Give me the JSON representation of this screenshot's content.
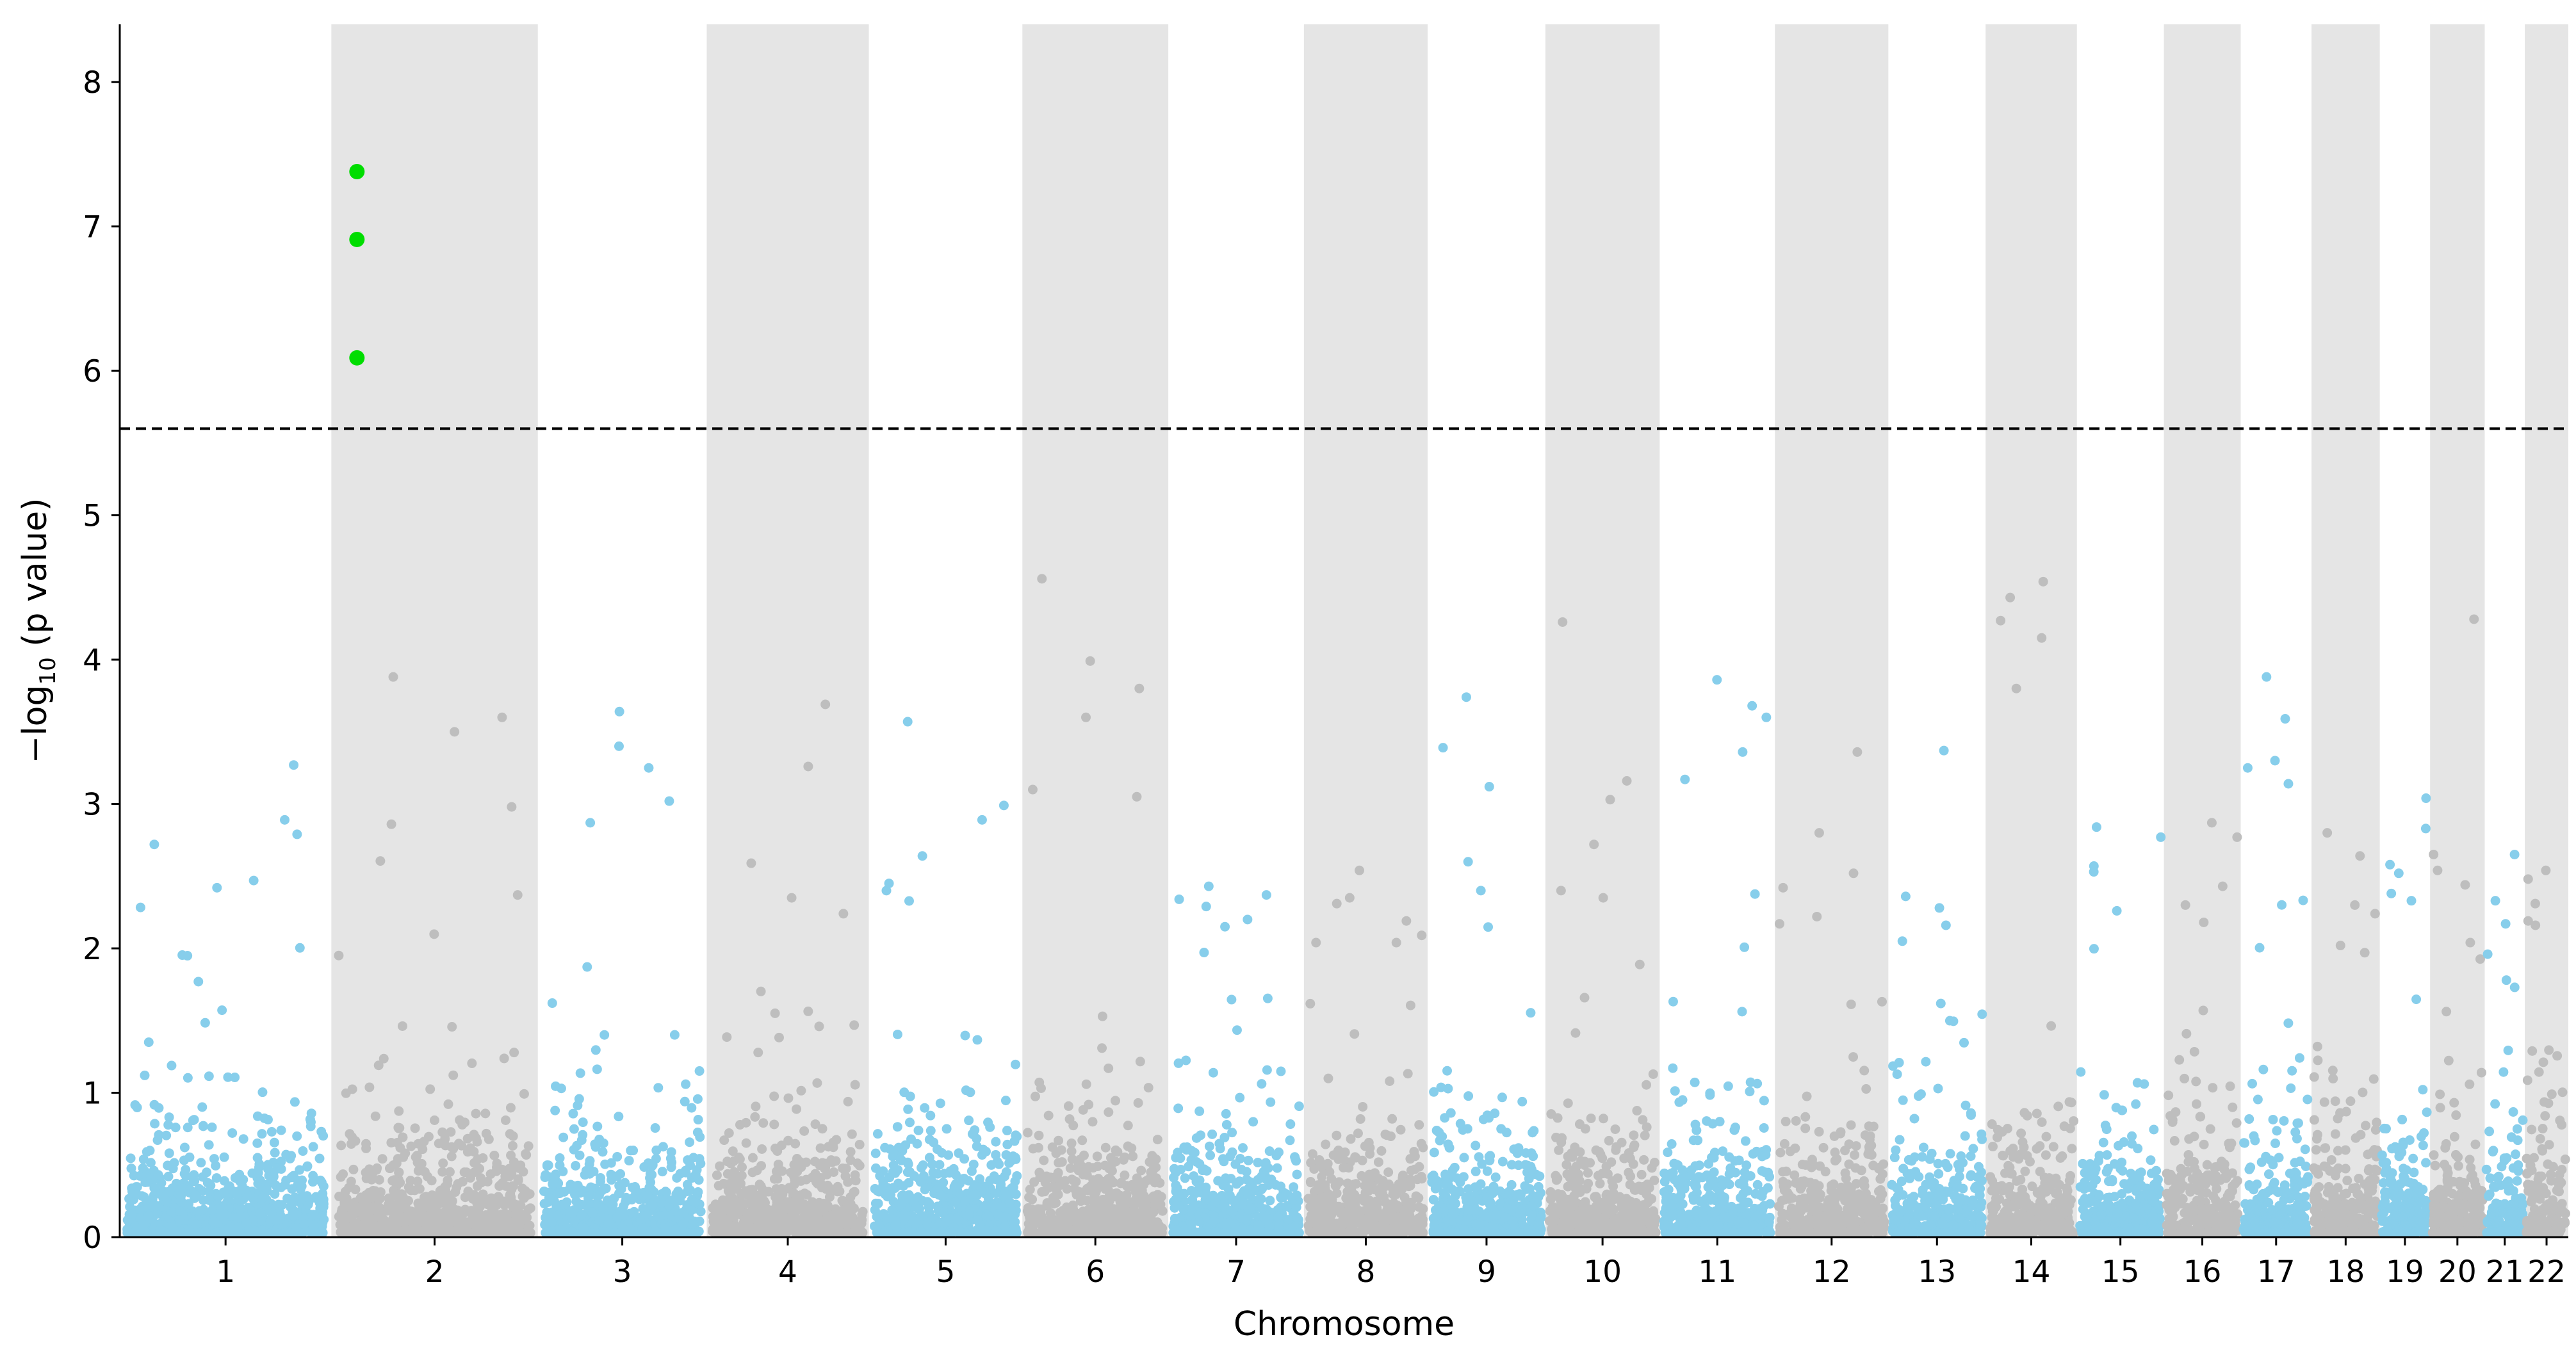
{
  "chart_data": {
    "type": "scatter",
    "subtype": "manhattan",
    "title": "",
    "xlabel": "Chromosome",
    "ylabel": {
      "prefix": "−log",
      "subscript": "10",
      "suffix": " (p value)"
    },
    "ylim": [
      0,
      8.4
    ],
    "yticks": [
      0,
      1,
      2,
      3,
      4,
      5,
      6,
      7,
      8
    ],
    "significance_threshold": 5.6,
    "chromosomes": [
      {
        "label": "1",
        "start": 0,
        "end": 248,
        "color": "#87CEEB",
        "shaded": false,
        "peaks": [
          3.27,
          2.89,
          2.79,
          2.72,
          2.47
        ]
      },
      {
        "label": "2",
        "start": 248,
        "end": 490,
        "color": "#BEBEBE",
        "shaded": true,
        "peaks": [
          3.88,
          3.6,
          3.5,
          2.98,
          2.86
        ]
      },
      {
        "label": "3",
        "start": 490,
        "end": 688,
        "color": "#87CEEB",
        "shaded": false,
        "peaks": [
          3.64,
          3.4,
          3.25,
          3.02,
          2.87
        ]
      },
      {
        "label": "4",
        "start": 688,
        "end": 878,
        "color": "#BEBEBE",
        "shaded": true,
        "peaks": [
          3.69,
          3.26,
          2.59,
          2.35,
          2.24
        ]
      },
      {
        "label": "5",
        "start": 878,
        "end": 1058,
        "color": "#87CEEB",
        "shaded": false,
        "peaks": [
          3.57,
          2.99,
          2.89,
          2.64,
          2.45
        ]
      },
      {
        "label": "6",
        "start": 1058,
        "end": 1229,
        "color": "#BEBEBE",
        "shaded": true,
        "peaks": [
          4.56,
          3.99,
          3.8,
          3.6,
          3.1
        ]
      },
      {
        "label": "7",
        "start": 1229,
        "end": 1388,
        "color": "#87CEEB",
        "shaded": false,
        "peaks": [
          2.43,
          2.37,
          2.34,
          2.29,
          2.2
        ]
      },
      {
        "label": "8",
        "start": 1388,
        "end": 1533,
        "color": "#BEBEBE",
        "shaded": true,
        "peaks": [
          2.54,
          2.35,
          2.31,
          2.19,
          2.09
        ]
      },
      {
        "label": "9",
        "start": 1533,
        "end": 1671,
        "color": "#87CEEB",
        "shaded": false,
        "peaks": [
          3.74,
          3.39,
          3.12,
          2.6,
          2.4
        ]
      },
      {
        "label": "10",
        "start": 1671,
        "end": 1805,
        "color": "#BEBEBE",
        "shaded": true,
        "peaks": [
          4.26,
          3.16,
          3.03,
          2.72,
          2.4
        ]
      },
      {
        "label": "11",
        "start": 1805,
        "end": 1940,
        "color": "#87CEEB",
        "shaded": false,
        "peaks": [
          3.86,
          3.68,
          3.6,
          3.36,
          3.17
        ]
      },
      {
        "label": "12",
        "start": 1940,
        "end": 2073,
        "color": "#BEBEBE",
        "shaded": true,
        "peaks": [
          3.36,
          2.8,
          2.52,
          2.42,
          2.22
        ]
      },
      {
        "label": "13",
        "start": 2073,
        "end": 2187,
        "color": "#87CEEB",
        "shaded": false,
        "peaks": [
          3.37,
          2.36,
          2.28,
          2.16,
          2.05
        ]
      },
      {
        "label": "14",
        "start": 2187,
        "end": 2294,
        "color": "#BEBEBE",
        "shaded": true,
        "peaks": [
          4.54,
          4.43,
          4.27,
          4.15,
          3.8
        ]
      },
      {
        "label": "15",
        "start": 2294,
        "end": 2396,
        "color": "#87CEEB",
        "shaded": false,
        "peaks": [
          2.84,
          2.77,
          2.57,
          2.53,
          2.26
        ]
      },
      {
        "label": "16",
        "start": 2396,
        "end": 2486,
        "color": "#BEBEBE",
        "shaded": true,
        "peaks": [
          2.87,
          2.77,
          2.43,
          2.3,
          2.18
        ]
      },
      {
        "label": "17",
        "start": 2486,
        "end": 2569,
        "color": "#87CEEB",
        "shaded": false,
        "peaks": [
          3.88,
          3.59,
          3.3,
          3.25,
          3.14
        ]
      },
      {
        "label": "18",
        "start": 2569,
        "end": 2649,
        "color": "#BEBEBE",
        "shaded": true,
        "peaks": [
          2.8,
          2.64,
          2.3,
          2.24,
          2.02
        ]
      },
      {
        "label": "19",
        "start": 2649,
        "end": 2708,
        "color": "#87CEEB",
        "shaded": false,
        "peaks": [
          3.04,
          2.83,
          2.58,
          2.52,
          2.38
        ]
      },
      {
        "label": "20",
        "start": 2708,
        "end": 2772,
        "color": "#BEBEBE",
        "shaded": true,
        "peaks": [
          4.28,
          2.65,
          2.54,
          2.44,
          2.04
        ]
      },
      {
        "label": "21",
        "start": 2772,
        "end": 2819,
        "color": "#87CEEB",
        "shaded": false,
        "peaks": [
          2.65,
          2.33,
          2.17,
          1.96,
          1.78
        ]
      },
      {
        "label": "22",
        "start": 2819,
        "end": 2870,
        "color": "#BEBEBE",
        "shaded": true,
        "peaks": [
          2.54,
          2.48,
          2.31,
          2.19,
          2.16
        ]
      }
    ],
    "significant_hits": [
      {
        "chromosome": "2",
        "x": 278,
        "y": 7.38,
        "color": "#00DD00"
      },
      {
        "chromosome": "2",
        "x": 278,
        "y": 6.91,
        "color": "#00DD00"
      },
      {
        "chromosome": "2",
        "x": 278,
        "y": 6.09,
        "color": "#00DD00"
      }
    ],
    "colors": {
      "odd": "#87CEEB",
      "even": "#BEBEBE",
      "band": "#E5E5E5",
      "hit": "#00DD00",
      "threshold": "#000000"
    },
    "grid": false,
    "legend": "none"
  }
}
